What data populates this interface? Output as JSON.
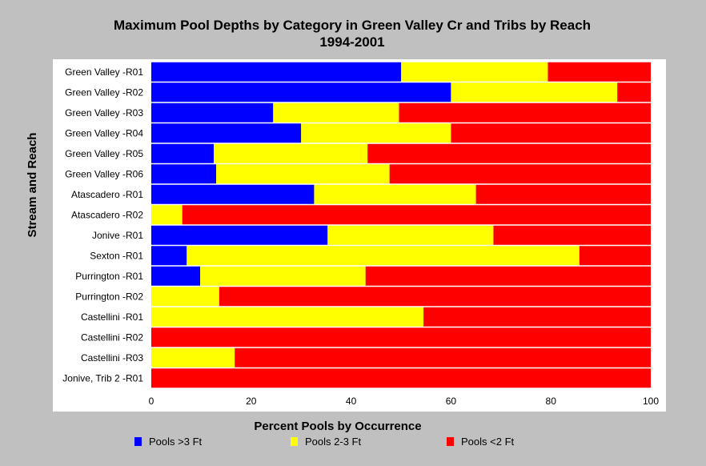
{
  "chart_data": {
    "type": "bar",
    "orientation": "horizontal",
    "stacked": true,
    "title": "Maximum Pool Depths by Category in Green Valley Cr and Tribs by Reach",
    "subtitle": "1994-2001",
    "xlabel": "Percent Pools by Occurrence",
    "ylabel": "Stream and Reach",
    "xlim": [
      0,
      100
    ],
    "xticks": [
      0,
      20,
      40,
      60,
      80,
      100
    ],
    "grid": false,
    "legend_position": "bottom",
    "categories": [
      "Green Valley -R01",
      "Green Valley -R02",
      "Green Valley -R03",
      "Green Valley -R04",
      "Green Valley -R05",
      "Green Valley -R06",
      "Atascadero -R01",
      "Atascadero -R02",
      "Jonive -R01",
      "Sexton -R01",
      "Purrington -R01",
      "Purrington -R02",
      "Castellini -R01",
      "Castellini -R02",
      "Castellini -R03",
      "Jonive, Trib 2 -R01"
    ],
    "series": [
      {
        "name": "Pools >3 Ft",
        "color": "#0000ff",
        "values": [
          50.0,
          60.0,
          24.4,
          30.0,
          12.5,
          13.0,
          32.6,
          0,
          35.3,
          7.1,
          9.8,
          0,
          0,
          0,
          0,
          0
        ]
      },
      {
        "name": "Pools 2-3 Ft",
        "color": "#ffff00",
        "values": [
          29.4,
          33.3,
          25.2,
          30.0,
          30.8,
          34.7,
          32.4,
          6.2,
          33.2,
          78.6,
          33.1,
          13.6,
          54.5,
          0,
          16.7,
          0
        ]
      },
      {
        "name": "Pools <2 Ft",
        "color": "#ff0000",
        "values": [
          20.6,
          6.7,
          50.4,
          40.0,
          56.7,
          52.3,
          35.0,
          93.8,
          31.5,
          14.3,
          57.1,
          86.4,
          45.5,
          100.0,
          83.3,
          100.0
        ]
      }
    ]
  }
}
